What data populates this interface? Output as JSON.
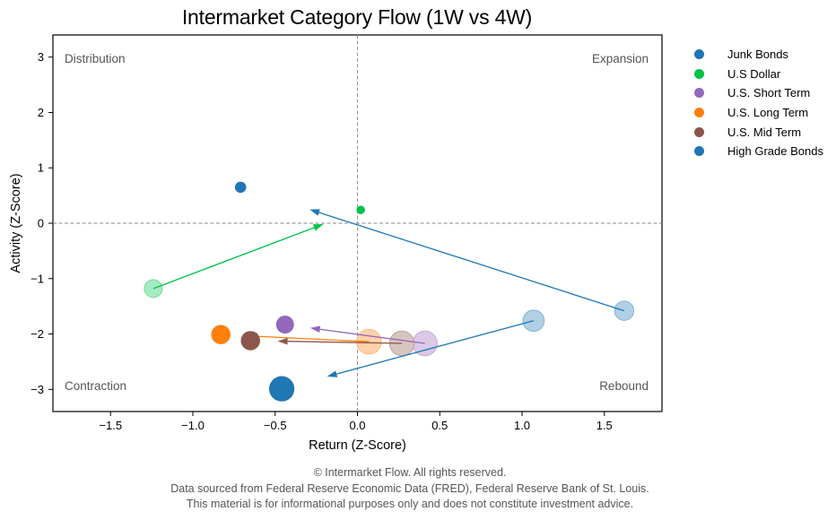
{
  "chart_data": {
    "type": "scatter",
    "title": "Intermarket Category Flow (1W vs 4W)",
    "xlabel": "Return (Z-Score)",
    "ylabel": "Activity (Z-Score)",
    "xlim": [
      -1.85,
      1.85
    ],
    "ylim": [
      -3.4,
      3.4
    ],
    "xticks": [
      -1.5,
      -1.0,
      -0.5,
      0.0,
      0.5,
      1.0,
      1.5
    ],
    "xtick_labels": [
      "−1.5",
      "−1.0",
      "−0.5",
      "0.0",
      "0.5",
      "1.0",
      "1.5"
    ],
    "yticks": [
      -3,
      -2,
      -1,
      0,
      1,
      2,
      3
    ],
    "ytick_labels": [
      "−3",
      "−2",
      "−1",
      "0",
      "1",
      "2",
      "3"
    ],
    "grid": false,
    "reference_lines": {
      "x": 0,
      "y": 0,
      "style": "dashed"
    },
    "quadrant_labels": {
      "top_left": "Distribution",
      "top_right": "Expansion",
      "bottom_left": "Contraction",
      "bottom_right": "Rebound"
    },
    "legend_position": "outside-right",
    "series": [
      {
        "name": "Junk Bonds",
        "color": "#1f77b4",
        "w1": {
          "x": -0.71,
          "y": 0.65,
          "size": 0.7
        },
        "w4": {
          "x": 1.62,
          "y": -1.58,
          "size": 1.3
        }
      },
      {
        "name": "U.S Dollar",
        "color": "#00c24a",
        "w1": {
          "x": 0.02,
          "y": 0.24,
          "size": 0.5
        },
        "w4": {
          "x": -1.24,
          "y": -1.18,
          "size": 1.2
        }
      },
      {
        "name": "U.S. Short Term",
        "color": "#9467bd",
        "w1": {
          "x": -0.44,
          "y": -1.83,
          "size": 1.2
        },
        "w4": {
          "x": 0.41,
          "y": -2.17,
          "size": 1.7
        }
      },
      {
        "name": "U.S. Long Term",
        "color": "#ff7f0e",
        "w1": {
          "x": -0.83,
          "y": -2.01,
          "size": 1.3
        },
        "w4": {
          "x": 0.07,
          "y": -2.14,
          "size": 1.7
        }
      },
      {
        "name": "U.S. Mid Term",
        "color": "#8c564b",
        "w1": {
          "x": -0.65,
          "y": -2.12,
          "size": 1.3
        },
        "w4": {
          "x": 0.27,
          "y": -2.17,
          "size": 1.7
        }
      },
      {
        "name": "High Grade Bonds",
        "color": "#1f77b4",
        "w1": {
          "x": -0.46,
          "y": -2.99,
          "size": 1.75
        },
        "w4": {
          "x": 1.07,
          "y": -1.76,
          "size": 1.45
        }
      }
    ]
  },
  "footer": {
    "line1": "© Intermarket Flow. All rights reserved.",
    "line2": "Data sourced from Federal Reserve Economic Data (FRED), Federal Reserve Bank of St. Louis.",
    "line3": "This material is for informational purposes only and does not constitute investment advice."
  }
}
